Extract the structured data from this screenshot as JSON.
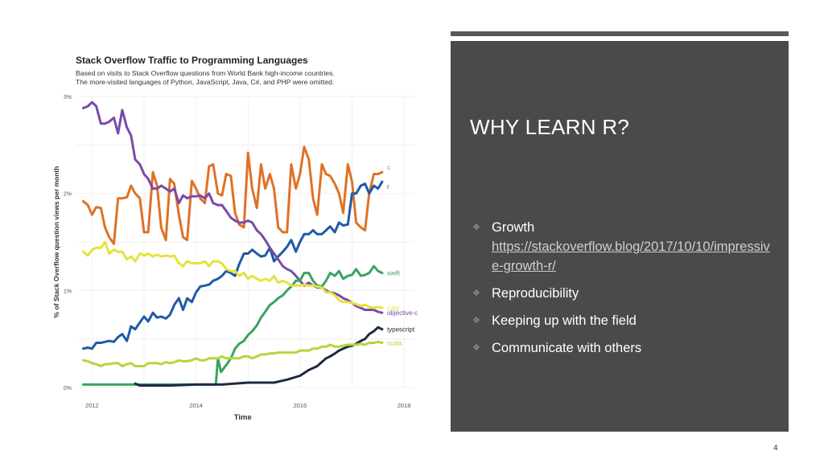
{
  "slide": {
    "title": "WHY LEARN R?",
    "bullets": [
      {
        "label": "Growth",
        "link": "https://stackoverflow.blog/2017/10/10/impressive-growth-r/"
      },
      {
        "label": "Reproducibility"
      },
      {
        "label": "Keeping up with the field"
      },
      {
        "label": "Communicate with others"
      }
    ],
    "page_number": "4"
  },
  "chart_data": {
    "type": "line",
    "title": "Stack Overflow Traffic to Programming Languages",
    "subtitle_lines": [
      "Based on visits to Stack Overflow questions from World Bank high-income countries.",
      "The more-visited languages of Python, JavaScript, Java, C#, and PHP were omitted."
    ],
    "xlabel": "Time",
    "ylabel": "% of Stack Overflow question views per month",
    "xlim": [
      2011.7,
      2018.2
    ],
    "ylim": [
      0,
      3
    ],
    "x_ticks": [
      2012,
      2014,
      2016,
      2018
    ],
    "y_ticks": [
      {
        "value": 0,
        "label": "0%"
      },
      {
        "value": 1,
        "label": "1%"
      },
      {
        "value": 2,
        "label": "2%"
      },
      {
        "value": 3,
        "label": "3%"
      }
    ],
    "grid": true,
    "legend": "direct labels at line ends (right)",
    "series": [
      {
        "name": "c",
        "color": "#e07126",
        "x": [
          2011.83,
          2011.92,
          2012.0,
          2012.08,
          2012.17,
          2012.25,
          2012.33,
          2012.42,
          2012.5,
          2012.58,
          2012.67,
          2012.75,
          2012.83,
          2012.92,
          2013.0,
          2013.08,
          2013.17,
          2013.25,
          2013.33,
          2013.42,
          2013.5,
          2013.58,
          2013.67,
          2013.75,
          2013.83,
          2013.92,
          2014.0,
          2014.08,
          2014.17,
          2014.25,
          2014.33,
          2014.42,
          2014.5,
          2014.58,
          2014.67,
          2014.75,
          2014.83,
          2014.92,
          2015.0,
          2015.08,
          2015.17,
          2015.25,
          2015.33,
          2015.42,
          2015.5,
          2015.58,
          2015.67,
          2015.75,
          2015.83,
          2015.92,
          2016.0,
          2016.08,
          2016.17,
          2016.25,
          2016.33,
          2016.42,
          2016.5,
          2016.58,
          2016.67,
          2016.75,
          2016.83,
          2016.92,
          2017.0,
          2017.08,
          2017.17,
          2017.25,
          2017.33,
          2017.42,
          2017.5,
          2017.58
        ],
        "y": [
          1.92,
          1.88,
          1.78,
          1.86,
          1.85,
          1.65,
          1.55,
          1.48,
          1.95,
          1.95,
          1.96,
          2.08,
          2.0,
          1.95,
          1.6,
          1.6,
          2.22,
          2.08,
          1.65,
          1.52,
          2.15,
          2.1,
          1.78,
          1.55,
          1.52,
          2.13,
          2.05,
          1.95,
          1.9,
          2.28,
          2.3,
          2.0,
          1.98,
          2.2,
          2.18,
          1.8,
          1.68,
          1.65,
          2.42,
          2.05,
          1.85,
          2.3,
          2.05,
          2.2,
          2.05,
          1.65,
          1.6,
          1.6,
          2.3,
          2.05,
          2.2,
          2.48,
          2.35,
          1.95,
          1.78,
          2.3,
          2.2,
          2.18,
          2.1,
          2.0,
          1.8,
          2.3,
          2.12,
          1.7,
          1.65,
          1.62,
          2.0,
          2.2,
          2.2,
          2.22
        ]
      },
      {
        "name": "r",
        "color": "#1f5aa6",
        "x": [
          2011.83,
          2011.92,
          2012.0,
          2012.08,
          2012.17,
          2012.25,
          2012.33,
          2012.42,
          2012.5,
          2012.58,
          2012.67,
          2012.75,
          2012.83,
          2012.92,
          2013.0,
          2013.08,
          2013.17,
          2013.25,
          2013.33,
          2013.42,
          2013.5,
          2013.58,
          2013.67,
          2013.75,
          2013.83,
          2013.92,
          2014.0,
          2014.08,
          2014.17,
          2014.25,
          2014.33,
          2014.42,
          2014.5,
          2014.58,
          2014.67,
          2014.75,
          2014.83,
          2014.92,
          2015.0,
          2015.08,
          2015.17,
          2015.25,
          2015.33,
          2015.42,
          2015.5,
          2015.58,
          2015.67,
          2015.75,
          2015.83,
          2015.92,
          2016.0,
          2016.08,
          2016.17,
          2016.25,
          2016.33,
          2016.42,
          2016.5,
          2016.58,
          2016.67,
          2016.75,
          2016.83,
          2016.92,
          2017.0,
          2017.08,
          2017.17,
          2017.25,
          2017.33,
          2017.42,
          2017.5,
          2017.58
        ],
        "y": [
          0.4,
          0.41,
          0.4,
          0.46,
          0.46,
          0.47,
          0.48,
          0.47,
          0.52,
          0.55,
          0.48,
          0.63,
          0.6,
          0.67,
          0.73,
          0.68,
          0.77,
          0.72,
          0.73,
          0.71,
          0.75,
          0.85,
          0.92,
          0.8,
          0.92,
          0.88,
          0.98,
          1.04,
          1.05,
          1.06,
          1.1,
          1.12,
          1.15,
          1.2,
          1.18,
          1.15,
          1.27,
          1.38,
          1.38,
          1.42,
          1.38,
          1.35,
          1.36,
          1.44,
          1.3,
          1.35,
          1.4,
          1.45,
          1.52,
          1.4,
          1.5,
          1.58,
          1.58,
          1.62,
          1.58,
          1.58,
          1.62,
          1.66,
          1.6,
          1.7,
          1.67,
          1.68,
          2.0,
          2.0,
          2.08,
          2.1,
          2.0,
          2.08,
          2.05,
          2.12
        ]
      },
      {
        "name": "objective-c",
        "color": "#7b4aa6",
        "x": [
          2011.83,
          2011.92,
          2012.0,
          2012.08,
          2012.17,
          2012.25,
          2012.33,
          2012.42,
          2012.5,
          2012.58,
          2012.67,
          2012.75,
          2012.83,
          2012.92,
          2013.0,
          2013.08,
          2013.17,
          2013.25,
          2013.33,
          2013.42,
          2013.5,
          2013.58,
          2013.67,
          2013.75,
          2013.83,
          2013.92,
          2014.0,
          2014.08,
          2014.17,
          2014.25,
          2014.33,
          2014.42,
          2014.5,
          2014.58,
          2014.67,
          2014.75,
          2014.83,
          2014.92,
          2015.0,
          2015.08,
          2015.17,
          2015.25,
          2015.33,
          2015.42,
          2015.5,
          2015.58,
          2015.67,
          2015.75,
          2015.83,
          2015.92,
          2016.0,
          2016.08,
          2016.17,
          2016.25,
          2016.33,
          2016.42,
          2016.5,
          2016.58,
          2016.67,
          2016.75,
          2016.83,
          2016.92,
          2017.0,
          2017.08,
          2017.17,
          2017.25,
          2017.33,
          2017.42,
          2017.5,
          2017.58
        ],
        "y": [
          2.88,
          2.9,
          2.94,
          2.9,
          2.72,
          2.72,
          2.74,
          2.78,
          2.62,
          2.86,
          2.68,
          2.6,
          2.35,
          2.3,
          2.2,
          2.15,
          2.05,
          2.05,
          2.08,
          2.05,
          2.02,
          2.05,
          1.9,
          1.98,
          1.95,
          1.97,
          1.97,
          1.98,
          1.95,
          2.0,
          1.9,
          1.88,
          1.88,
          1.82,
          1.75,
          1.72,
          1.7,
          1.7,
          1.72,
          1.7,
          1.62,
          1.58,
          1.52,
          1.44,
          1.38,
          1.32,
          1.25,
          1.22,
          1.2,
          1.15,
          1.1,
          1.05,
          1.08,
          1.05,
          1.03,
          1.03,
          1.0,
          0.98,
          0.97,
          0.95,
          0.92,
          0.9,
          0.87,
          0.84,
          0.82,
          0.8,
          0.8,
          0.8,
          0.78,
          0.77
        ]
      },
      {
        "name": "swift",
        "color": "#3aa35f",
        "x": [
          2011.83,
          2012.0,
          2012.5,
          2013.0,
          2013.5,
          2014.0,
          2014.3,
          2014.38,
          2014.42,
          2014.48,
          2014.58,
          2014.67,
          2014.75,
          2014.83,
          2014.92,
          2015.0,
          2015.08,
          2015.17,
          2015.25,
          2015.33,
          2015.42,
          2015.5,
          2015.58,
          2015.67,
          2015.75,
          2015.83,
          2015.92,
          2016.0,
          2016.08,
          2016.17,
          2016.25,
          2016.33,
          2016.42,
          2016.5,
          2016.58,
          2016.67,
          2016.75,
          2016.83,
          2016.92,
          2017.0,
          2017.08,
          2017.17,
          2017.25,
          2017.33,
          2017.42,
          2017.5,
          2017.58
        ],
        "y": [
          0.03,
          0.03,
          0.03,
          0.03,
          0.03,
          0.03,
          0.03,
          0.03,
          0.3,
          0.16,
          0.23,
          0.3,
          0.4,
          0.45,
          0.48,
          0.54,
          0.58,
          0.64,
          0.72,
          0.78,
          0.85,
          0.88,
          0.92,
          0.95,
          1.0,
          1.04,
          1.1,
          1.1,
          1.18,
          1.18,
          1.1,
          1.05,
          1.04,
          1.1,
          1.18,
          1.15,
          1.2,
          1.12,
          1.15,
          1.16,
          1.22,
          1.15,
          1.16,
          1.18,
          1.25,
          1.2,
          1.18
        ]
      },
      {
        "name": "ruby",
        "color": "#e6e23b",
        "x": [
          2011.83,
          2011.92,
          2012.0,
          2012.08,
          2012.17,
          2012.25,
          2012.33,
          2012.42,
          2012.5,
          2012.58,
          2012.67,
          2012.75,
          2012.83,
          2012.92,
          2013.0,
          2013.08,
          2013.17,
          2013.25,
          2013.33,
          2013.42,
          2013.5,
          2013.58,
          2013.67,
          2013.75,
          2013.83,
          2013.92,
          2014.0,
          2014.08,
          2014.17,
          2014.25,
          2014.33,
          2014.42,
          2014.5,
          2014.58,
          2014.67,
          2014.75,
          2014.83,
          2014.92,
          2015.0,
          2015.08,
          2015.17,
          2015.25,
          2015.33,
          2015.42,
          2015.5,
          2015.58,
          2015.67,
          2015.75,
          2015.83,
          2015.92,
          2016.0,
          2016.08,
          2016.17,
          2016.25,
          2016.33,
          2016.42,
          2016.5,
          2016.58,
          2016.67,
          2016.75,
          2016.83,
          2016.92,
          2017.0,
          2017.08,
          2017.17,
          2017.25,
          2017.33,
          2017.42,
          2017.5,
          2017.58
        ],
        "y": [
          1.4,
          1.36,
          1.42,
          1.44,
          1.44,
          1.5,
          1.38,
          1.42,
          1.4,
          1.4,
          1.32,
          1.35,
          1.3,
          1.38,
          1.36,
          1.38,
          1.35,
          1.37,
          1.35,
          1.36,
          1.35,
          1.36,
          1.28,
          1.25,
          1.3,
          1.28,
          1.28,
          1.28,
          1.3,
          1.25,
          1.3,
          1.3,
          1.28,
          1.22,
          1.2,
          1.2,
          1.15,
          1.18,
          1.12,
          1.15,
          1.12,
          1.1,
          1.12,
          1.1,
          1.15,
          1.08,
          1.1,
          1.08,
          1.05,
          1.05,
          1.05,
          1.06,
          1.05,
          1.05,
          1.04,
          1.03,
          0.98,
          0.98,
          0.95,
          0.9,
          0.88,
          0.88,
          0.87,
          0.86,
          0.84,
          0.85,
          0.83,
          0.82,
          0.83,
          0.82
        ]
      },
      {
        "name": "typescript",
        "color": "#1c2b40",
        "x": [
          2012.83,
          2012.92,
          2013.0,
          2013.5,
          2014.0,
          2014.5,
          2015.0,
          2015.5,
          2015.75,
          2016.0,
          2016.17,
          2016.33,
          2016.5,
          2016.58,
          2016.67,
          2016.75,
          2016.83,
          2016.92,
          2017.0,
          2017.08,
          2017.17,
          2017.25,
          2017.33,
          2017.42,
          2017.5,
          2017.58
        ],
        "y": [
          0.04,
          0.02,
          0.02,
          0.02,
          0.03,
          0.03,
          0.05,
          0.05,
          0.08,
          0.12,
          0.18,
          0.22,
          0.3,
          0.32,
          0.35,
          0.38,
          0.4,
          0.42,
          0.43,
          0.45,
          0.48,
          0.5,
          0.55,
          0.58,
          0.62,
          0.6
        ]
      },
      {
        "name": "scala",
        "color": "#b8d43a",
        "x": [
          2011.83,
          2011.92,
          2012.0,
          2012.08,
          2012.17,
          2012.25,
          2012.33,
          2012.42,
          2012.5,
          2012.58,
          2012.67,
          2012.75,
          2012.83,
          2012.92,
          2013.0,
          2013.08,
          2013.17,
          2013.25,
          2013.33,
          2013.42,
          2013.5,
          2013.58,
          2013.67,
          2013.75,
          2013.83,
          2013.92,
          2014.0,
          2014.08,
          2014.17,
          2014.25,
          2014.33,
          2014.42,
          2014.5,
          2014.58,
          2014.67,
          2014.75,
          2014.83,
          2014.92,
          2015.0,
          2015.08,
          2015.17,
          2015.25,
          2015.33,
          2015.42,
          2015.5,
          2015.58,
          2015.67,
          2015.75,
          2015.83,
          2015.92,
          2016.0,
          2016.08,
          2016.17,
          2016.25,
          2016.33,
          2016.42,
          2016.5,
          2016.58,
          2016.67,
          2016.75,
          2016.83,
          2016.92,
          2017.0,
          2017.08,
          2017.17,
          2017.25,
          2017.33,
          2017.42,
          2017.5,
          2017.58
        ],
        "y": [
          0.28,
          0.27,
          0.25,
          0.24,
          0.22,
          0.24,
          0.24,
          0.25,
          0.25,
          0.22,
          0.24,
          0.25,
          0.22,
          0.22,
          0.22,
          0.25,
          0.25,
          0.25,
          0.24,
          0.26,
          0.25,
          0.26,
          0.28,
          0.27,
          0.27,
          0.28,
          0.3,
          0.28,
          0.28,
          0.3,
          0.3,
          0.3,
          0.32,
          0.3,
          0.3,
          0.3,
          0.3,
          0.32,
          0.32,
          0.3,
          0.32,
          0.34,
          0.34,
          0.35,
          0.35,
          0.36,
          0.36,
          0.36,
          0.36,
          0.36,
          0.38,
          0.38,
          0.38,
          0.4,
          0.4,
          0.42,
          0.42,
          0.44,
          0.42,
          0.42,
          0.43,
          0.44,
          0.44,
          0.44,
          0.45,
          0.44,
          0.46,
          0.46,
          0.47,
          0.46
        ]
      }
    ]
  }
}
